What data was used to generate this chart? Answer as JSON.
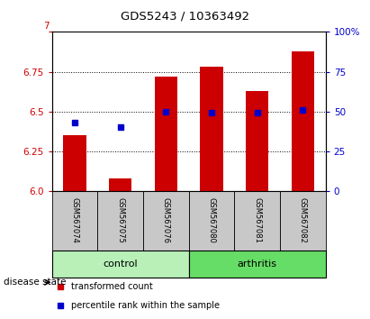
{
  "title": "GDS5243 / 10363492",
  "samples": [
    "GSM567074",
    "GSM567075",
    "GSM567076",
    "GSM567080",
    "GSM567081",
    "GSM567082"
  ],
  "bar_values": [
    6.35,
    6.08,
    6.72,
    6.78,
    6.63,
    6.88
  ],
  "percentile_values": [
    43,
    40,
    50,
    49,
    49,
    51
  ],
  "groups": [
    {
      "label": "control",
      "indices": [
        0,
        1,
        2
      ],
      "color": "#b8f0b8"
    },
    {
      "label": "arthritis",
      "indices": [
        3,
        4,
        5
      ],
      "color": "#66dd66"
    }
  ],
  "ylim_left": [
    6.0,
    7.0
  ],
  "ylim_right": [
    0,
    100
  ],
  "yticks_left": [
    6.0,
    6.25,
    6.5,
    6.75,
    7.0
  ],
  "yticks_right": [
    0,
    25,
    50,
    75,
    100
  ],
  "bar_color": "#cc0000",
  "dot_color": "#0000cc",
  "label_area_color": "#c8c8c8",
  "disease_state_label": "disease state",
  "legend_bar_label": "transformed count",
  "legend_dot_label": "percentile rank within the sample"
}
